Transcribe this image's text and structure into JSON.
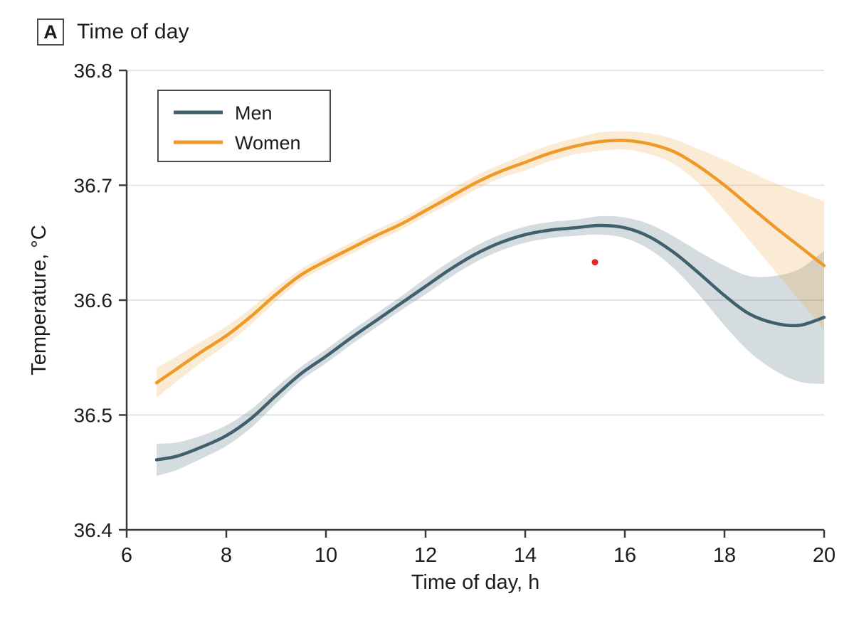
{
  "panel": {
    "label": "A",
    "title": "Time of day"
  },
  "colors": {
    "men_line": "#40606D",
    "women_line": "#EF9A28",
    "men_band": "rgba(64,96,109,0.22)",
    "women_band": "rgba(239,154,40,0.20)",
    "grid": "#E4E4E4",
    "axis": "#3A3A3A",
    "text": "#1C1C1C",
    "annotation_dot": "#DC2828",
    "legend_border": "#4B4B4B"
  },
  "chart_data": {
    "type": "line",
    "title": "Time of day",
    "xlabel": "Time of day, h",
    "ylabel": "Temperature, °C",
    "xlim": [
      6,
      20
    ],
    "ylim": [
      36.4,
      36.8
    ],
    "xticks": [
      6,
      8,
      10,
      12,
      14,
      16,
      18,
      20
    ],
    "xtick_labels": [
      "6",
      "8",
      "10",
      "12",
      "14",
      "16",
      "18",
      "20"
    ],
    "yticks": [
      36.4,
      36.5,
      36.6,
      36.7,
      36.8
    ],
    "ytick_labels": [
      "36.4",
      "36.5",
      "36.6",
      "36.7",
      "36.8"
    ],
    "grid": "horizontal",
    "legend": {
      "position": "upper-left",
      "entries": [
        "Men",
        "Women"
      ]
    },
    "x": [
      6.6,
      7.0,
      7.5,
      8.0,
      8.5,
      9.0,
      9.5,
      10.0,
      10.5,
      11.0,
      11.5,
      12.0,
      12.5,
      13.0,
      13.5,
      14.0,
      14.5,
      15.0,
      15.5,
      16.0,
      16.5,
      17.0,
      17.5,
      18.0,
      18.5,
      19.0,
      19.5,
      20.0
    ],
    "series": [
      {
        "name": "Men",
        "mean": [
          36.461,
          36.464,
          36.472,
          36.482,
          36.497,
          36.517,
          36.536,
          36.551,
          36.567,
          36.582,
          36.597,
          36.612,
          36.627,
          36.64,
          36.65,
          36.657,
          36.661,
          36.663,
          36.665,
          36.663,
          36.655,
          36.641,
          36.623,
          36.604,
          36.588,
          36.58,
          36.578,
          36.585
        ],
        "lower": [
          36.447,
          36.452,
          36.462,
          36.473,
          36.489,
          36.51,
          36.53,
          36.545,
          36.561,
          36.576,
          36.591,
          36.605,
          36.62,
          36.633,
          36.643,
          36.65,
          36.654,
          36.656,
          36.657,
          36.654,
          36.644,
          36.627,
          36.604,
          36.578,
          36.555,
          36.539,
          36.529,
          36.527
        ],
        "upper": [
          36.475,
          36.476,
          36.482,
          36.491,
          36.505,
          36.524,
          36.542,
          36.557,
          36.573,
          36.588,
          36.603,
          36.619,
          36.634,
          36.647,
          36.657,
          36.664,
          36.668,
          36.67,
          36.673,
          36.672,
          36.666,
          36.655,
          36.642,
          36.63,
          36.621,
          36.621,
          36.627,
          36.643
        ]
      },
      {
        "name": "Women",
        "mean": [
          36.528,
          36.54,
          36.555,
          36.569,
          36.586,
          36.605,
          36.622,
          36.634,
          36.645,
          36.656,
          36.666,
          36.678,
          36.69,
          36.702,
          36.712,
          36.72,
          36.728,
          36.734,
          36.738,
          36.739,
          36.736,
          36.729,
          36.716,
          36.7,
          36.682,
          36.664,
          36.647,
          36.63
        ],
        "lower": [
          36.515,
          36.529,
          36.546,
          36.561,
          36.579,
          36.599,
          36.617,
          36.629,
          36.64,
          36.651,
          36.661,
          36.673,
          36.684,
          36.696,
          36.706,
          36.713,
          36.721,
          36.727,
          36.73,
          36.731,
          36.727,
          36.718,
          36.701,
          36.678,
          36.652,
          36.626,
          36.6,
          36.574
        ],
        "upper": [
          36.541,
          36.551,
          36.564,
          36.577,
          36.593,
          36.611,
          36.627,
          36.639,
          36.65,
          36.661,
          36.671,
          36.683,
          36.696,
          36.708,
          36.718,
          36.727,
          36.735,
          36.741,
          36.746,
          36.747,
          36.745,
          36.74,
          36.731,
          36.722,
          36.712,
          36.702,
          36.694,
          36.686
        ]
      }
    ],
    "annotation_point": {
      "x": 15.4,
      "y": 36.633
    }
  }
}
